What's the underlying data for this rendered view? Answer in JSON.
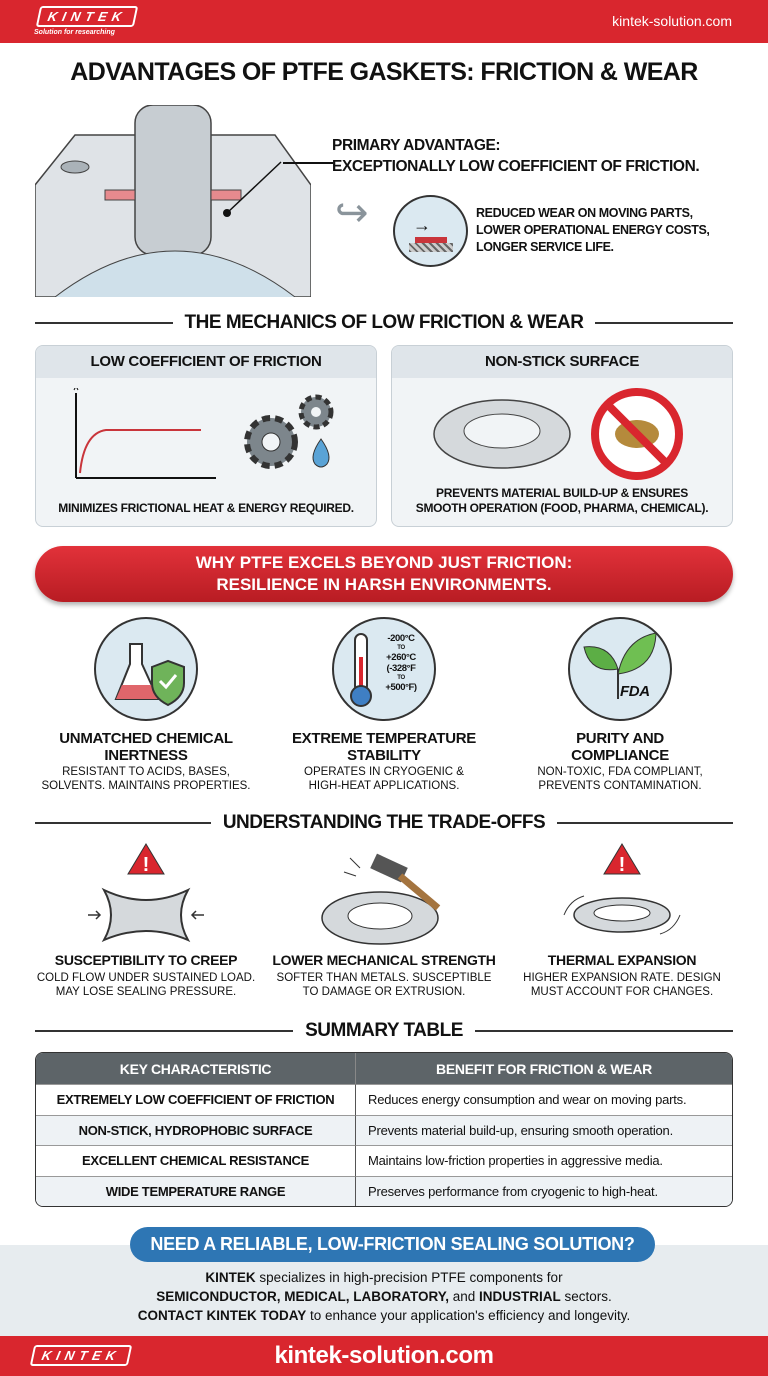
{
  "header": {
    "logo": "KINTEK",
    "tagline": "Solution for researching",
    "site": "kintek-solution.com"
  },
  "title": "ADVANTAGES OF PTFE GASKETS: FRICTION & WEAR",
  "hero": {
    "primary_line1": "PRIMARY ADVANTAGE:",
    "primary_line2": "EXCEPTIONALLY LOW COEFFICIENT OF FRICTION.",
    "benefits": [
      "REDUCED WEAR ON MOVING PARTS,",
      "LOWER OPERATIONAL ENERGY COSTS,",
      "LONGER SERVICE LIFE."
    ]
  },
  "mechanics": {
    "heading": "THE MECHANICS OF LOW FRICTION & WEAR",
    "cards": [
      {
        "title": "LOW COEFFICIENT OF FRICTION",
        "desc": "MINIMIZES FRICTIONAL HEAT & ENERGY REQUIRED."
      },
      {
        "title": "NON-STICK SURFACE",
        "desc_line1": "PREVENTS MATERIAL BUILD-UP & ENSURES",
        "desc_line2": "SMOOTH OPERATION (FOOD, PHARMA, CHEMICAL)."
      }
    ]
  },
  "banner": {
    "line1": "WHY PTFE EXCELS BEYOND JUST FRICTION:",
    "line2": "RESILIENCE IN HARSH ENVIRONMENTS."
  },
  "excels": [
    {
      "title1": "UNMATCHED CHEMICAL",
      "title2": "INERTNESS",
      "desc1": "RESISTANT TO ACIDS, BASES,",
      "desc2": "SOLVENTS. MAINTAINS PROPERTIES."
    },
    {
      "title1": "EXTREME TEMPERATURE",
      "title2": "STABILITY",
      "desc1": "OPERATES IN CRYOGENIC &",
      "desc2": "HIGH-HEAT APPLICATIONS.",
      "temp": [
        "-200°C",
        "TO",
        "+260°C",
        "(-328°F",
        "TO",
        "+500°F)"
      ]
    },
    {
      "title1": "PURITY AND",
      "title2": "COMPLIANCE",
      "desc1": "NON-TOXIC, FDA COMPLIANT,",
      "desc2": "PREVENTS CONTAMINATION.",
      "badge": "FDA"
    }
  ],
  "tradeoffs": {
    "heading": "UNDERSTANDING THE TRADE-OFFS",
    "items": [
      {
        "title": "SUSCEPTIBILITY TO CREEP",
        "desc1": "COLD FLOW UNDER SUSTAINED LOAD.",
        "desc2": "MAY LOSE SEALING PRESSURE."
      },
      {
        "title": "LOWER MECHANICAL STRENGTH",
        "desc1": "SOFTER THAN METALS. SUSCEPTIBLE",
        "desc2": "TO DAMAGE OR EXTRUSION."
      },
      {
        "title": "THERMAL EXPANSION",
        "desc1": "HIGHER EXPANSION RATE. DESIGN",
        "desc2": "MUST ACCOUNT FOR CHANGES."
      }
    ]
  },
  "summary": {
    "heading": "SUMMARY TABLE",
    "columns": [
      "KEY CHARACTERISTIC",
      "BENEFIT FOR FRICTION & WEAR"
    ],
    "rows": [
      [
        "EXTREMELY LOW COEFFICIENT OF FRICTION",
        "Reduces energy consumption and wear on moving parts."
      ],
      [
        "NON-STICK, HYDROPHOBIC SURFACE",
        "Prevents material build-up, ensuring smooth operation."
      ],
      [
        "EXCELLENT CHEMICAL RESISTANCE",
        "Maintains low-friction properties in aggressive media."
      ],
      [
        "WIDE TEMPERATURE RANGE",
        "Preserves performance from cryogenic to high-heat."
      ]
    ]
  },
  "cta": {
    "pill": "NEED A RELIABLE, LOW-FRICTION SEALING SOLUTION?",
    "l1b": "KINTEK",
    "l1": " specializes in high-precision PTFE components for",
    "l2a": "SEMICONDUCTOR, MEDICAL, LABORATORY,",
    "l2b": " and ",
    "l2c": "INDUSTRIAL",
    "l2d": " sectors.",
    "l3b": "CONTACT KINTEK TODAY",
    "l3": " to enhance your application's efficiency and longevity."
  },
  "footer": {
    "logo": "KINTEK",
    "site": "kintek-solution.com"
  },
  "colors": {
    "brand_red": "#d9262e",
    "accent_blue": "#2e76b4"
  }
}
